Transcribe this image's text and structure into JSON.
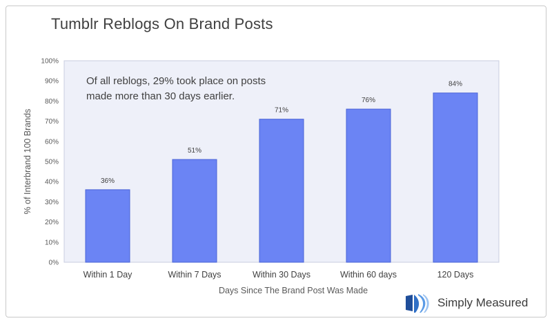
{
  "chart_data": {
    "type": "bar",
    "title": "Tumblr Reblogs On Brand Posts",
    "xlabel": "Days Since The Brand Post Was Made",
    "ylabel": "% of Interbrand 100 Brands",
    "categories": [
      "Within 1 Day",
      "Within 7 Days",
      "Within 30 Days",
      "Within 60 days",
      "120 Days"
    ],
    "values": [
      36,
      51,
      71,
      76,
      84
    ],
    "data_labels": [
      "36%",
      "51%",
      "71%",
      "76%",
      "84%"
    ],
    "ylim": [
      0,
      100
    ],
    "yticks": [
      "0%",
      "10%",
      "20%",
      "30%",
      "40%",
      "50%",
      "60%",
      "70%",
      "80%",
      "90%",
      "100%"
    ],
    "grid": false,
    "annotation": {
      "line1": "Of all reblogs, 29% took place on posts",
      "line2": "made more than 30 days earlier."
    },
    "colors": {
      "bar": "#6b84f4",
      "bar_edge": "#4a63d6",
      "plot_background": "#eef0f9"
    }
  },
  "logo": {
    "text": "Simply Measured",
    "icon": "simply-measured-logo-icon"
  }
}
